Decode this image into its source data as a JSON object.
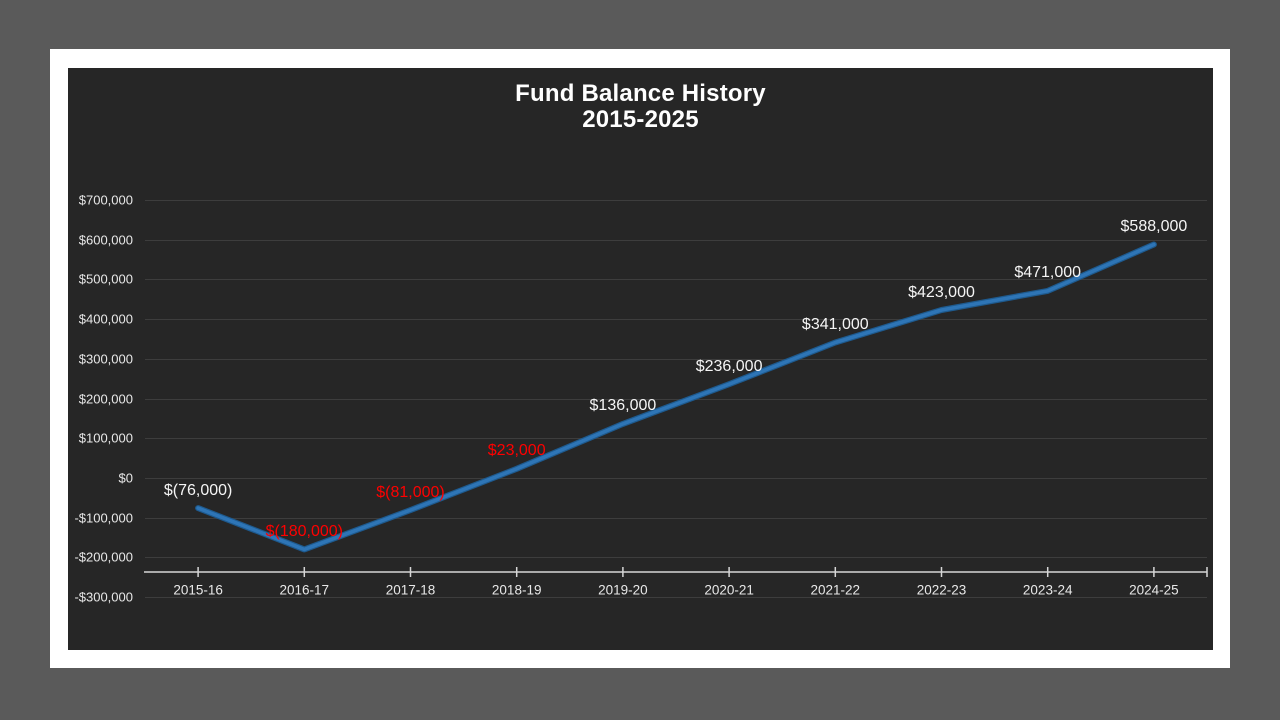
{
  "colors": {
    "desktop": "#5A5A5A",
    "slide": "#FFFFFF",
    "panel": "#262626",
    "gridline": "#3D3D3D",
    "axis": "#D6D6D6",
    "axis_text": "#E8E8E8",
    "title_text": "#FFFFFF",
    "line": "#2E75B6",
    "line_edge": "#1E5A8E",
    "positive_label": "#F5F5F5",
    "negative_label": "#FF0000"
  },
  "chart_data": {
    "type": "line",
    "title": "Fund Balance History 2015-2025",
    "title_lines": [
      "Fund Balance History",
      "2015-2025"
    ],
    "categories": [
      "2015-16",
      "2016-17",
      "2017-18",
      "2018-19",
      "2019-20",
      "2020-21",
      "2021-22",
      "2022-23",
      "2023-24",
      "2024-25"
    ],
    "values": [
      -76000,
      -180000,
      -81000,
      23000,
      136000,
      236000,
      341000,
      423000,
      471000,
      588000
    ],
    "data_labels": [
      "$(76,000)",
      "$(180,000)",
      "$(81,000)",
      "$23,000",
      "$136,000",
      "$236,000",
      "$341,000",
      "$423,000",
      "$471,000",
      "$588,000"
    ],
    "data_label_colors": [
      "#F5F5F5",
      "#FF0000",
      "#FF0000",
      "#FF0000",
      "#F5F5F5",
      "#F5F5F5",
      "#F5F5F5",
      "#F5F5F5",
      "#F5F5F5",
      "#F5F5F5"
    ],
    "y_axis": {
      "tick_labels": [
        "$700,000",
        "$600,000",
        "$500,000",
        "$400,000",
        "$300,000",
        "$200,000",
        "$100,000",
        "$0",
        "-$100,000",
        "-$200,000",
        "-$300,000"
      ],
      "tick_values": [
        700000,
        600000,
        500000,
        400000,
        300000,
        200000,
        100000,
        0,
        -100000,
        -200000,
        -300000
      ],
      "min": -300000,
      "max": 700000
    },
    "grid": true,
    "legend": "none"
  }
}
